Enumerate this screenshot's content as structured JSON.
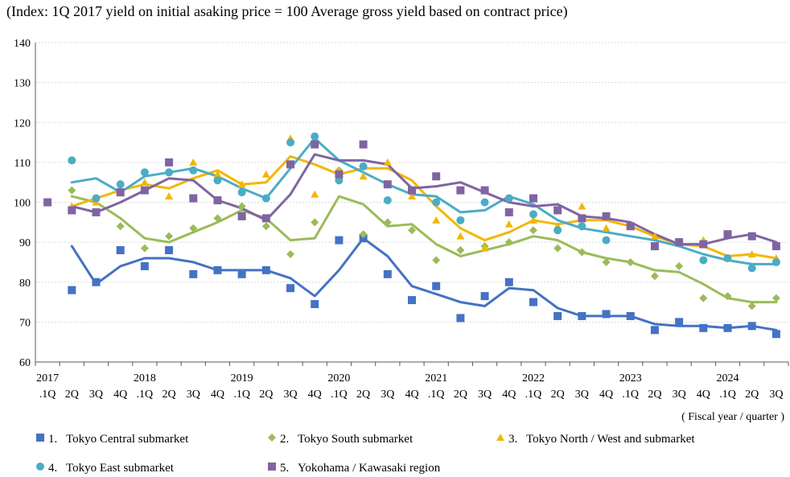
{
  "chart_data": {
    "type": "line",
    "title": "(Index: 1Q 2017 yield on initial asaking price = 100   Average gross yield based on contract price)",
    "xlabel": "( Fiscal year / quarter )",
    "ylabel": "",
    "ylim": [
      60,
      140
    ],
    "yticks": [
      60,
      70,
      80,
      90,
      100,
      110,
      120,
      130,
      140
    ],
    "grid": "horizontal",
    "legend_position": "bottom",
    "quarter_labels": [
      ".1Q",
      "2Q",
      "3Q",
      "4Q",
      ".1Q",
      "2Q",
      "3Q",
      "4Q",
      ".1Q",
      "2Q",
      "3Q",
      "4Q",
      ".1Q",
      "2Q",
      "3Q",
      "4Q",
      ".1Q",
      "2Q",
      "3Q",
      "4Q",
      ".1Q",
      "2Q",
      "3Q",
      "4Q",
      ".1Q",
      "2Q",
      "3Q",
      "4Q",
      ".1Q",
      "2Q",
      "3Q"
    ],
    "year_labels": [
      {
        "label": "2017",
        "index": 0
      },
      {
        "label": "2018",
        "index": 4
      },
      {
        "label": "2019",
        "index": 8
      },
      {
        "label": "2020",
        "index": 12
      },
      {
        "label": "2021",
        "index": 16
      },
      {
        "label": "2022",
        "index": 20
      },
      {
        "label": "2023",
        "index": 24
      },
      {
        "label": "2024",
        "index": 28
      }
    ],
    "series": [
      {
        "name": "1. Tokyo Central submarket",
        "legend_number": "1.",
        "legend_text": "Tokyo Central submarket",
        "color": "#4472C4",
        "marker": "square",
        "points": [
          null,
          78,
          80,
          88,
          84,
          88,
          82,
          83,
          82,
          83,
          78.5,
          74.5,
          90.5,
          91,
          82,
          75.5,
          79,
          71,
          76.5,
          80,
          75,
          71.5,
          71.5,
          72,
          71.5,
          68,
          70,
          68.5,
          68.5,
          69,
          67
        ],
        "trend": [
          null,
          89,
          79.5,
          84,
          86,
          86,
          85,
          83,
          83,
          83,
          81,
          76.5,
          83,
          91,
          86.5,
          79,
          77,
          75,
          74,
          78.5,
          78,
          73.5,
          71.5,
          71.5,
          71.5,
          69.5,
          69,
          69,
          68.5,
          69,
          68
        ]
      },
      {
        "name": "2. Tokyo South submarket",
        "legend_number": "2.",
        "legend_text": "Tokyo South submarket",
        "color": "#9BBB59",
        "marker": "diamond",
        "points": [
          null,
          103,
          101,
          94,
          88.5,
          91.5,
          93.5,
          96,
          99,
          94,
          87,
          95,
          108,
          92,
          95,
          93,
          85.5,
          88,
          89,
          90,
          93,
          88.5,
          87.5,
          85,
          85,
          81.5,
          84,
          76,
          76.5,
          74,
          76
        ],
        "trend": [
          null,
          101.5,
          100,
          96,
          91,
          90,
          92.5,
          95,
          98,
          96,
          90.5,
          91,
          101.5,
          99.5,
          94,
          94.5,
          89.5,
          86.5,
          88,
          89.5,
          91.5,
          90.5,
          87.5,
          86,
          85,
          83,
          82.5,
          79.5,
          76,
          75,
          75
        ]
      },
      {
        "name": "3. Tokyo North / West and  submarket",
        "legend_number": "3.",
        "legend_text": "Tokyo North / West and  submarket",
        "color": "#F2B705",
        "marker": "triangle",
        "points": [
          null,
          99,
          100,
          102.5,
          105,
          101.5,
          110,
          107,
          104.5,
          107,
          116,
          102,
          108,
          106.5,
          110,
          101.5,
          95.5,
          91.5,
          88.5,
          94.5,
          95.5,
          94,
          99,
          93.5,
          94,
          91.5,
          90,
          90.5,
          86,
          87,
          86
        ],
        "trend": [
          null,
          99,
          101,
          103,
          104.5,
          103.5,
          106,
          108,
          104.5,
          105,
          111.5,
          109.5,
          107,
          108.5,
          108.5,
          105.5,
          99,
          93.5,
          90.5,
          92.5,
          95.5,
          94.5,
          95.5,
          95.5,
          94,
          91.5,
          89.5,
          89,
          86.5,
          87,
          86
        ]
      },
      {
        "name": "4. Tokyo East submarket",
        "legend_number": "4.",
        "legend_text": "Tokyo East submarket",
        "color": "#4BACC6",
        "marker": "circle",
        "points": [
          null,
          110.5,
          101,
          104.5,
          107.5,
          107.5,
          108,
          105.5,
          102.5,
          101,
          115,
          116.5,
          105.5,
          109,
          100.5,
          103,
          100,
          95.5,
          100,
          101,
          97,
          93,
          94,
          90.5,
          null,
          null,
          null,
          85.5,
          86,
          83.5,
          85
        ],
        "trend": [
          null,
          105,
          106,
          102.5,
          106.5,
          107.5,
          108.5,
          106.5,
          103.5,
          101,
          108.5,
          116,
          110.5,
          107.5,
          104.5,
          102,
          101.5,
          97.5,
          98,
          101.5,
          99.5,
          95.5,
          93.5,
          92.5,
          91.5,
          90.5,
          89,
          87,
          85.5,
          84.5,
          84.5
        ]
      },
      {
        "name": "5. Yokohama / Kawasaki region",
        "legend_number": "5.",
        "legend_text": "Yokohama / Kawasaki region",
        "color": "#8064A2",
        "marker": "square",
        "points": [
          100,
          98,
          97.5,
          102.5,
          103,
          110,
          101,
          100.5,
          96.5,
          96,
          109.5,
          114.5,
          107,
          114.5,
          104.5,
          103,
          106.5,
          103,
          103,
          97.5,
          101,
          98,
          96,
          96.5,
          94,
          89,
          90,
          89.5,
          92,
          91.5,
          89
        ],
        "trend": [
          null,
          99,
          97.5,
          100,
          103,
          106,
          105.5,
          100.5,
          98.5,
          95.5,
          102,
          112,
          110.5,
          110.5,
          109.5,
          103.5,
          104,
          105,
          102.5,
          100,
          99,
          99.5,
          96.5,
          96,
          95,
          92,
          89.5,
          89.5,
          91,
          92,
          90
        ]
      }
    ]
  }
}
